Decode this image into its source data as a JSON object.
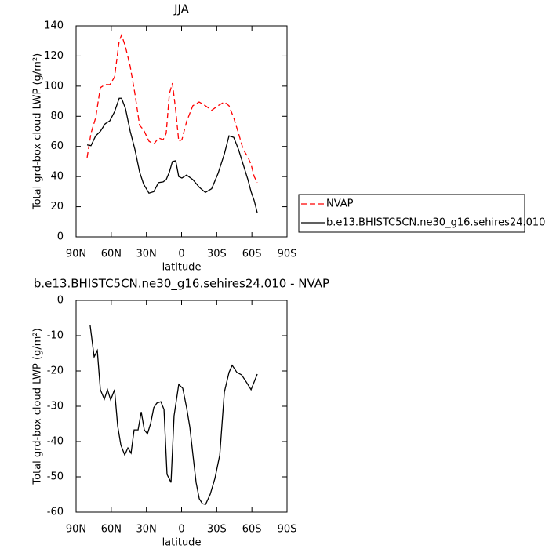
{
  "chart_data": [
    {
      "type": "line",
      "title": "JJA",
      "x_label": "latitude",
      "y_label": "Total grd-box cloud LWP (g/m²)",
      "x": [
        80.6,
        77.3,
        73.3,
        69.3,
        65.2,
        61.2,
        57.2,
        53.2,
        51.2,
        47.8,
        43.8,
        39.8,
        35.8,
        32.4,
        27.8,
        23.7,
        19.7,
        15.7,
        13.1,
        10.4,
        7.8,
        5.0,
        2.4,
        -0.3,
        -4.3,
        -9.6,
        -15.0,
        -20.3,
        -25.7,
        -31.1,
        -36.5,
        -40.5,
        -44.5,
        -48.6,
        -52.6,
        -56.6,
        -59.3,
        -62.0,
        -64.6
      ],
      "xlim": [
        90,
        -90
      ],
      "xticks": [
        {
          "value": 90,
          "label": "90N"
        },
        {
          "value": 60,
          "label": "60N"
        },
        {
          "value": 30,
          "label": "30N"
        },
        0,
        {
          "value": -30,
          "label": "30S"
        },
        {
          "value": -60,
          "label": "60S"
        },
        {
          "value": -90,
          "label": "90S"
        }
      ],
      "ylim": [
        0,
        140
      ],
      "yticks": [
        0,
        20,
        40,
        60,
        80,
        100,
        120,
        140
      ],
      "legend": "right",
      "series": [
        {
          "name": "NVAP",
          "color": "#ff0000",
          "dashed": true,
          "values": [
            52.6,
            68.7,
            79,
            99,
            101,
            101,
            106,
            130,
            134,
            126,
            113,
            95,
            74,
            71,
            63.5,
            61.5,
            65.6,
            64.5,
            68.7,
            95,
            102,
            84,
            63.5,
            64.5,
            76.5,
            87,
            89.5,
            87,
            84,
            87,
            89.5,
            87,
            79,
            68.7,
            58,
            53,
            48,
            40,
            36
          ]
        },
        {
          "name": "b.e13.BHISTC5CN.ne30_g16.sehires24.010",
          "color": "#000000",
          "dashed": false,
          "values": [
            61,
            60.5,
            67,
            70,
            75,
            77,
            83,
            92,
            92,
            85,
            70,
            58,
            43,
            35,
            29,
            30,
            36,
            36.5,
            38,
            43,
            50,
            50.5,
            40,
            39,
            41,
            38,
            33,
            29.5,
            32,
            42,
            55,
            67,
            66,
            58,
            48,
            38,
            30,
            24,
            16
          ]
        }
      ]
    },
    {
      "type": "line",
      "title": "b.e13.BHISTC5CN.ne30_g16.sehires24.010 - NVAP",
      "x_label": "latitude",
      "y_label": "Total grd-box cloud LWP (g/m²)",
      "x": [
        78.0,
        74.6,
        71.9,
        69.3,
        65.9,
        63.2,
        60.5,
        57.2,
        54.5,
        51.8,
        48.5,
        45.8,
        43.1,
        40.5,
        37.1,
        34.4,
        31.8,
        29.1,
        26.4,
        23.7,
        21.1,
        17.7,
        15.0,
        12.4,
        9.0,
        6.4,
        2.4,
        -1.0,
        -4.3,
        -7.1,
        -9.7,
        -12.4,
        -15.1,
        -17.8,
        -20.5,
        -24.5,
        -28.5,
        -32.6,
        -36.5,
        -40.5,
        -43.2,
        -47.2,
        -51.2,
        -55.2,
        -59.3,
        -64.6
      ],
      "xlim": [
        90,
        -90
      ],
      "xticks": [
        {
          "value": 90,
          "label": "90N"
        },
        {
          "value": 60,
          "label": "60N"
        },
        {
          "value": 30,
          "label": "30N"
        },
        0,
        {
          "value": -30,
          "label": "30S"
        },
        {
          "value": -60,
          "label": "60S"
        },
        {
          "value": -90,
          "label": "90S"
        }
      ],
      "ylim": [
        -60,
        0
      ],
      "yticks": [
        -60,
        -50,
        -40,
        -30,
        -20,
        -10,
        0
      ],
      "series": [
        {
          "color": "#000000",
          "dashed": false,
          "values": [
            -7.1,
            -16,
            -14.2,
            -25.3,
            -28,
            -25.3,
            -28.2,
            -25.3,
            -35.6,
            -41,
            -43.8,
            -41.8,
            -43.3,
            -36.7,
            -36.7,
            -31.6,
            -36.7,
            -37.8,
            -34.9,
            -30.4,
            -29.1,
            -28.7,
            -30.9,
            -49.3,
            -51.6,
            -32.7,
            -23.8,
            -24.9,
            -30.4,
            -36,
            -43.8,
            -51.6,
            -56.2,
            -57.6,
            -57.8,
            -54.9,
            -50.4,
            -43.8,
            -26,
            -20.4,
            -18.4,
            -20.4,
            -21.1,
            -23.1,
            -25.3,
            -20.9
          ]
        }
      ]
    }
  ]
}
